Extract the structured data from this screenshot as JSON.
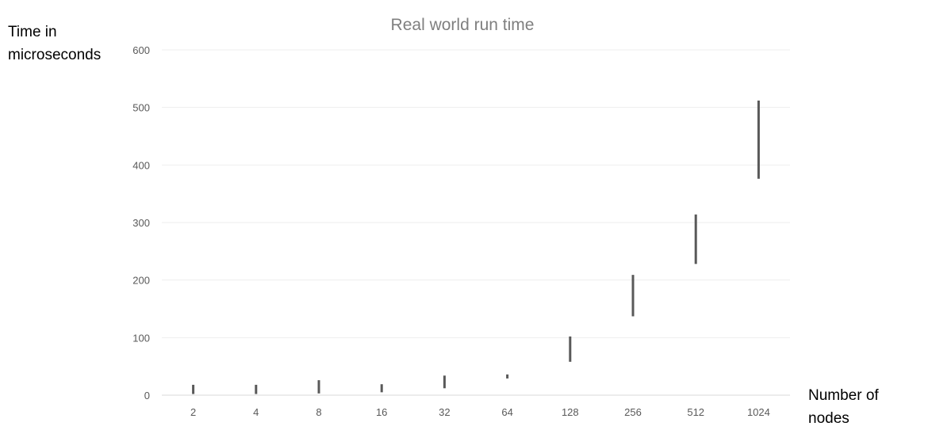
{
  "chart_data": {
    "type": "range-bar",
    "title": "Real world run time",
    "ylabel": [
      "Time in",
      "microseconds"
    ],
    "xlabel": [
      "Number of",
      "nodes"
    ],
    "categories": [
      "2",
      "4",
      "8",
      "16",
      "32",
      "64",
      "128",
      "256",
      "512",
      "1024"
    ],
    "ranges": [
      [
        2,
        18
      ],
      [
        2,
        18
      ],
      [
        3,
        26
      ],
      [
        5,
        19
      ],
      [
        12,
        34
      ],
      [
        29,
        36
      ],
      [
        58,
        102
      ],
      [
        137,
        209
      ],
      [
        228,
        314
      ],
      [
        376,
        512
      ]
    ],
    "yticks": [
      0,
      100,
      200,
      300,
      400,
      500,
      600
    ],
    "ylim": [
      0,
      600
    ],
    "grid": true,
    "legend": "none",
    "colors": {
      "bar": "#595959",
      "grid": "#eeeeee",
      "axis": "#d9d9d9",
      "title": "#7f7f7f",
      "tick": "#595959"
    }
  }
}
